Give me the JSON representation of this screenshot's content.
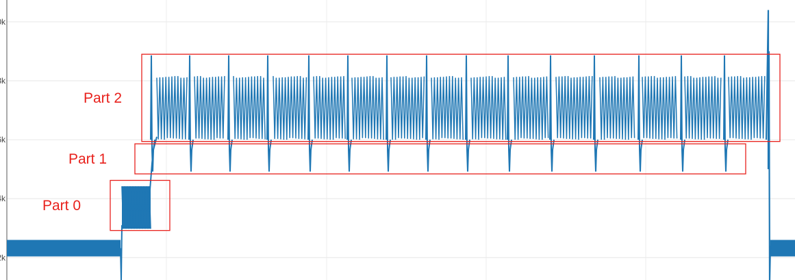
{
  "chart_data": {
    "type": "line",
    "title": "",
    "xlabel": "",
    "ylabel": "",
    "grid": true,
    "legend": "none",
    "line_color": "#1f77b4",
    "annotation_color": "#e8211c",
    "xlim": [
      0,
      1161
    ],
    "ylim": [
      -0.38,
      4.37
    ],
    "y_ticks": [
      {
        "value": 0,
        "label": "2k"
      },
      {
        "value": 1,
        "label": "4k"
      },
      {
        "value": 2,
        "label": "6k"
      },
      {
        "value": 3,
        "label": "8k"
      },
      {
        "value": 4,
        "label": "0k"
      }
    ],
    "x_gridlines": [
      243,
      477,
      710,
      943
    ],
    "annotations": [
      {
        "label": "Part 2",
        "x_range": [
          207,
          1139
        ],
        "y_range": [
          1.97,
          3.45
        ]
      },
      {
        "label": "Part 1",
        "x_range": [
          197,
          1089
        ],
        "y_range": [
          1.42,
          1.93
        ]
      },
      {
        "label": "Part 0",
        "x_range": [
          161,
          248
        ],
        "y_range": [
          0.46,
          1.31
        ]
      }
    ],
    "bands": [
      {
        "name": "baseline-left",
        "x_range": [
          10,
          176
        ],
        "y_range": [
          0.02,
          0.3
        ]
      },
      {
        "name": "baseline-right",
        "x_range": [
          1125,
          1161
        ],
        "y_range": [
          0.02,
          0.3
        ]
      },
      {
        "name": "part-0-oscillation",
        "x_range": [
          178,
          220
        ],
        "y_range": [
          0.49,
          1.21
        ]
      }
    ],
    "part2_blocks": [
      [
        229,
        273
      ],
      [
        284,
        330
      ],
      [
        341,
        389
      ],
      [
        399,
        448
      ],
      [
        458,
        505
      ],
      [
        514,
        561
      ],
      [
        571,
        620
      ],
      [
        630,
        678
      ],
      [
        688,
        740
      ],
      [
        750,
        802
      ],
      [
        812,
        866
      ],
      [
        876,
        928
      ],
      [
        938,
        990
      ],
      [
        1000,
        1054
      ],
      [
        1064,
        1119
      ]
    ],
    "part1_dips": [
      222,
      278,
      335,
      392,
      452,
      509,
      566,
      624,
      682,
      743,
      805,
      869,
      934,
      996,
      1059
    ],
    "part2_high": 3.08,
    "part2_low": 2.0,
    "part1_high": 1.83,
    "part1_low": 1.46,
    "final_spike": {
      "x": 1122,
      "high": 4.2,
      "low": -0.38
    },
    "initial_dip": {
      "x": 177,
      "low": -0.38
    }
  }
}
